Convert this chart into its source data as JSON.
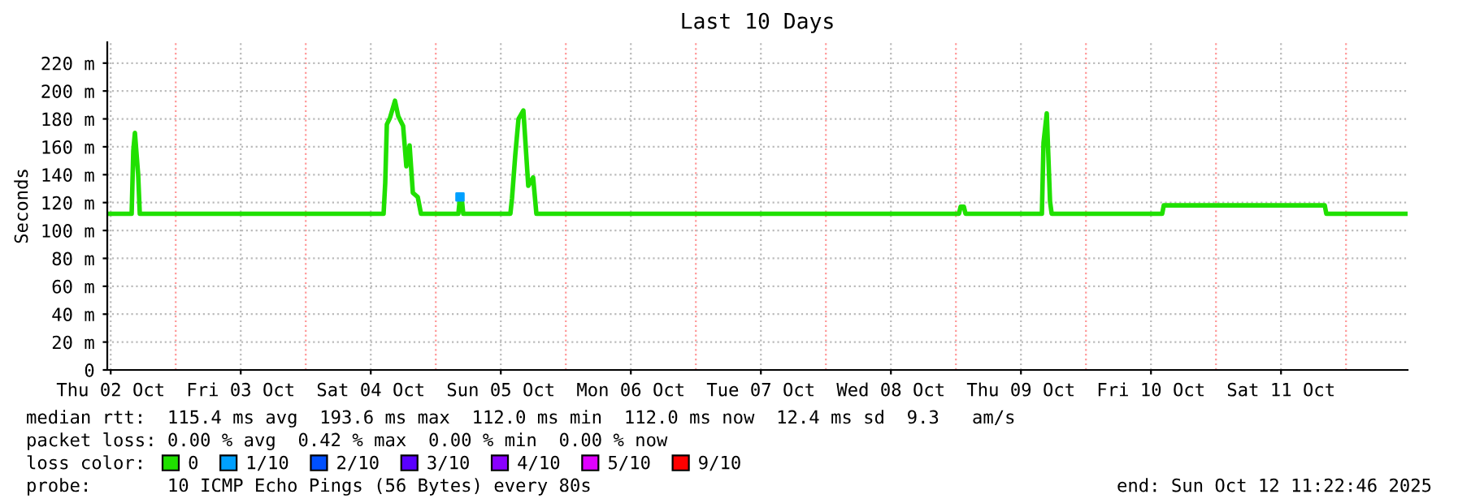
{
  "chart_data": {
    "type": "line",
    "title": "Last 10 Days",
    "ylabel": "Seconds",
    "x": [
      "2025-10-02T11:22",
      "2025-10-02T15:52",
      "2025-10-02T16:10",
      "2025-10-02T16:28",
      "2025-10-02T17:04",
      "2025-10-02T17:22",
      "2025-10-04T14:22",
      "2025-10-04T14:40",
      "2025-10-04T14:58",
      "2025-10-04T15:34",
      "2025-10-04T16:28",
      "2025-10-04T17:04",
      "2025-10-04T17:58",
      "2025-10-04T18:34",
      "2025-10-04T19:10",
      "2025-10-04T19:46",
      "2025-10-04T20:40",
      "2025-10-04T21:16",
      "2025-10-05T04:10",
      "2025-10-05T04:28",
      "2025-10-05T04:46",
      "2025-10-05T05:04",
      "2025-10-05T13:46",
      "2025-10-05T14:04",
      "2025-10-05T14:40",
      "2025-10-05T15:16",
      "2025-10-05T16:10",
      "2025-10-05T17:04",
      "2025-10-05T17:58",
      "2025-10-05T18:34",
      "2025-10-09T00:34",
      "2025-10-09T00:52",
      "2025-10-09T01:28",
      "2025-10-09T01:46",
      "2025-10-09T15:52",
      "2025-10-09T16:10",
      "2025-10-09T16:46",
      "2025-10-09T17:22",
      "2025-10-09T17:40",
      "2025-10-10T14:04",
      "2025-10-10T14:22",
      "2025-10-11T20:04",
      "2025-10-11T20:22",
      "2025-10-12T11:04"
    ],
    "series": [
      {
        "name": "0",
        "color": "#20e000",
        "values": [
          112,
          112,
          157,
          170,
          140,
          112,
          112,
          134,
          176,
          181,
          193,
          182,
          175,
          146,
          161,
          127,
          124,
          112,
          112,
          124,
          124,
          112,
          112,
          123,
          154,
          180,
          186,
          132,
          138,
          112,
          112,
          117,
          117,
          112,
          112,
          163,
          184,
          121,
          112,
          112,
          118,
          118,
          112,
          112
        ]
      },
      {
        "name": "1/10",
        "color": "#00a0ff",
        "type": "scatter",
        "marker": "square",
        "values": [
          null,
          null,
          null,
          null,
          null,
          null,
          null,
          null,
          null,
          null,
          null,
          null,
          null,
          null,
          null,
          null,
          null,
          null,
          null,
          124,
          null,
          null,
          null,
          null,
          null,
          null,
          null,
          null,
          null,
          null,
          null,
          null,
          null,
          null,
          null,
          null,
          null,
          null,
          null,
          null,
          null,
          null,
          null,
          null
        ]
      },
      {
        "name": "2/10",
        "color": "#0050ff",
        "values": [
          null,
          null,
          null,
          null,
          null,
          null,
          null,
          null,
          null,
          null,
          null,
          null,
          null,
          null,
          null,
          null,
          null,
          null,
          null,
          null,
          null,
          null,
          null,
          null,
          null,
          null,
          null,
          null,
          null,
          null,
          null,
          null,
          null,
          null,
          null,
          null,
          null,
          null,
          null,
          null,
          null,
          null,
          null,
          null
        ]
      },
      {
        "name": "3/10",
        "color": "#5a00ff",
        "values": [
          null,
          null,
          null,
          null,
          null,
          null,
          null,
          null,
          null,
          null,
          null,
          null,
          null,
          null,
          null,
          null,
          null,
          null,
          null,
          null,
          null,
          null,
          null,
          null,
          null,
          null,
          null,
          null,
          null,
          null,
          null,
          null,
          null,
          null,
          null,
          null,
          null,
          null,
          null,
          null,
          null,
          null,
          null,
          null
        ]
      },
      {
        "name": "4/10",
        "color": "#8a00ff",
        "values": [
          null,
          null,
          null,
          null,
          null,
          null,
          null,
          null,
          null,
          null,
          null,
          null,
          null,
          null,
          null,
          null,
          null,
          null,
          null,
          null,
          null,
          null,
          null,
          null,
          null,
          null,
          null,
          null,
          null,
          null,
          null,
          null,
          null,
          null,
          null,
          null,
          null,
          null,
          null,
          null,
          null,
          null,
          null,
          null
        ]
      },
      {
        "name": "5/10",
        "color": "#e000ff",
        "values": [
          null,
          null,
          null,
          null,
          null,
          null,
          null,
          null,
          null,
          null,
          null,
          null,
          null,
          null,
          null,
          null,
          null,
          null,
          null,
          null,
          null,
          null,
          null,
          null,
          null,
          null,
          null,
          null,
          null,
          null,
          null,
          null,
          null,
          null,
          null,
          null,
          null,
          null,
          null,
          null,
          null,
          null,
          null,
          null
        ]
      },
      {
        "name": "9/10",
        "color": "#ff0000",
        "values": [
          null,
          null,
          null,
          null,
          null,
          null,
          null,
          null,
          null,
          null,
          null,
          null,
          null,
          null,
          null,
          null,
          null,
          null,
          null,
          null,
          null,
          null,
          null,
          null,
          null,
          null,
          null,
          null,
          null,
          null,
          null,
          null,
          null,
          null,
          null,
          null,
          null,
          null,
          null,
          null,
          null,
          null,
          null,
          null
        ]
      }
    ],
    "legend": "bottom",
    "legend_title": "loss color:",
    "xlim": [
      "2025-10-02T11:22",
      "2025-10-12T11:22"
    ],
    "xticks": [
      {
        "value": "2025-10-02T12:00",
        "label": "Thu 02 Oct"
      },
      {
        "value": "2025-10-03T12:00",
        "label": "Fri 03 Oct"
      },
      {
        "value": "2025-10-04T12:00",
        "label": "Sat 04 Oct"
      },
      {
        "value": "2025-10-05T12:00",
        "label": "Sun 05 Oct"
      },
      {
        "value": "2025-10-06T12:00",
        "label": "Mon 06 Oct"
      },
      {
        "value": "2025-10-07T12:00",
        "label": "Tue 07 Oct"
      },
      {
        "value": "2025-10-08T12:00",
        "label": "Wed 08 Oct"
      },
      {
        "value": "2025-10-09T12:00",
        "label": "Thu 09 Oct"
      },
      {
        "value": "2025-10-10T12:00",
        "label": "Fri 10 Oct"
      },
      {
        "value": "2025-10-11T12:00",
        "label": "Sat 11 Oct"
      }
    ],
    "ylim": [
      0,
      235
    ],
    "yticks": [
      0,
      {
        "value": 20,
        "label": "20 m"
      },
      {
        "value": 40,
        "label": "40 m"
      },
      {
        "value": 60,
        "label": "60 m"
      },
      {
        "value": 80,
        "label": "80 m"
      },
      {
        "value": 100,
        "label": "100 m"
      },
      {
        "value": 120,
        "label": "120 m"
      },
      {
        "value": 140,
        "label": "140 m"
      },
      {
        "value": 160,
        "label": "160 m"
      },
      {
        "value": 180,
        "label": "180 m"
      },
      {
        "value": 200,
        "label": "200 m"
      },
      {
        "value": 220,
        "label": "220 m"
      }
    ],
    "grid": true,
    "ref_lines": [
      {
        "axis": "x",
        "value": "2025-10-03T00:00",
        "color": "#ff9999",
        "line_style": "dotted"
      },
      {
        "axis": "x",
        "value": "2025-10-04T00:00",
        "color": "#ff9999",
        "line_style": "dotted"
      },
      {
        "axis": "x",
        "value": "2025-10-05T00:00",
        "color": "#ff9999",
        "line_style": "dotted"
      },
      {
        "axis": "x",
        "value": "2025-10-06T00:00",
        "color": "#ff9999",
        "line_style": "dotted"
      },
      {
        "axis": "x",
        "value": "2025-10-07T00:00",
        "color": "#ff9999",
        "line_style": "dotted"
      },
      {
        "axis": "x",
        "value": "2025-10-08T00:00",
        "color": "#ff9999",
        "line_style": "dotted"
      },
      {
        "axis": "x",
        "value": "2025-10-09T00:00",
        "color": "#ff9999",
        "line_style": "dotted"
      },
      {
        "axis": "x",
        "value": "2025-10-10T00:00",
        "color": "#ff9999",
        "line_style": "dotted"
      },
      {
        "axis": "x",
        "value": "2025-10-11T00:00",
        "color": "#ff9999",
        "line_style": "dotted"
      },
      {
        "axis": "x",
        "value": "2025-10-12T00:00",
        "color": "#ff9999",
        "line_style": "dotted"
      }
    ],
    "annotations": [
      "median rtt:  115.4 ms avg  193.6 ms max  112.0 ms min  112.0 ms now  12.4 ms sd  9.3   am/s",
      "packet loss: 0.00 % avg  0.42 % max  0.00 % min  0.00 % now",
      "probe:       10 ICMP Echo Pings (56 Bytes) every 80s",
      "end: Sun Oct 12 11:22:46 2025"
    ]
  }
}
